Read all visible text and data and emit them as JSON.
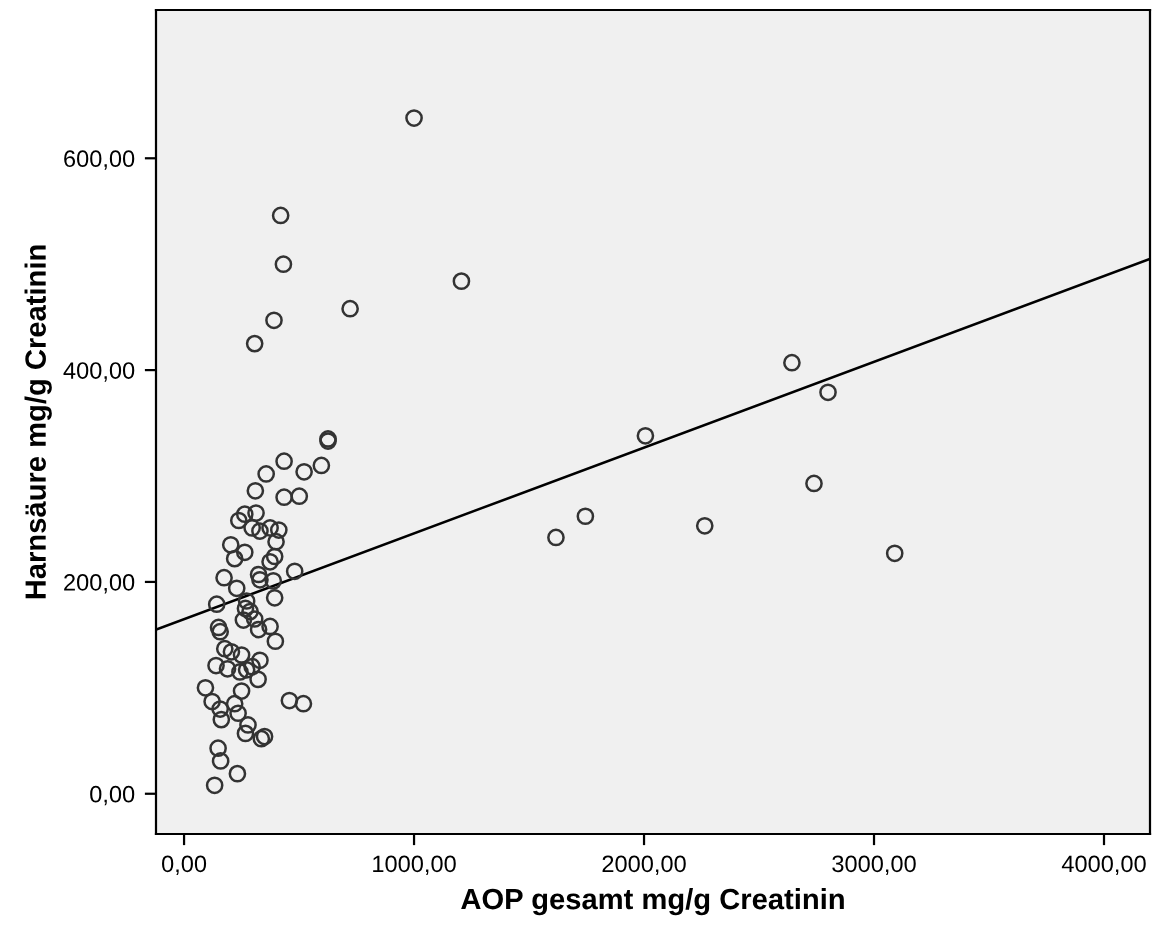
{
  "chart_data": {
    "type": "scatter",
    "xlabel": "AOP gesamt mg/g Creatinin",
    "ylabel": "Harnsäure mg/g Creatinin",
    "xlim": [
      -122,
      4200
    ],
    "ylim": [
      -38,
      740
    ],
    "xticks": [
      {
        "value": 0,
        "label": "0,00"
      },
      {
        "value": 1000,
        "label": "1000,00"
      },
      {
        "value": 2000,
        "label": "2000,00"
      },
      {
        "value": 3000,
        "label": "3000,00"
      },
      {
        "value": 4000,
        "label": "4000,00"
      }
    ],
    "yticks": [
      {
        "value": 0,
        "label": "0,00"
      },
      {
        "value": 200,
        "label": "200,00"
      },
      {
        "value": 400,
        "label": "400,00"
      },
      {
        "value": 600,
        "label": "600,00"
      }
    ],
    "grid": false,
    "marker": "circle",
    "series": [
      {
        "color": "#333333",
        "x": [
          1000,
          420,
          432,
          391,
          307,
          722,
          1206,
          2643,
          2800,
          2006,
          2739,
          1745,
          1617,
          2264,
          3090,
          626,
          626,
          435,
          357,
          522,
          597,
          310,
          435,
          501,
          238,
          264,
          313,
          296,
          330,
          374,
          412,
          400,
          203,
          264,
          220,
          374,
          394,
          174,
          324,
          330,
          388,
          481,
          229,
          394,
          142,
          272,
          267,
          287,
          258,
          307,
          324,
          374,
          150,
          157,
          397,
          177,
          206,
          250,
          330,
          139,
          189,
          243,
          272,
          296,
          322,
          93,
          250,
          122,
          157,
          162,
          220,
          235,
          458,
          519,
          278,
          267,
          336,
          350,
          148,
          159,
          232,
          133
        ],
        "values": [
          638,
          546,
          500,
          447,
          425,
          458,
          484,
          407,
          379,
          338,
          293,
          262,
          242,
          253,
          227,
          335,
          333,
          314,
          302,
          304,
          310,
          286,
          280,
          281,
          258,
          264,
          265,
          251,
          248,
          251,
          249,
          238,
          235,
          228,
          222,
          219,
          224,
          204,
          207,
          202,
          201,
          210,
          194,
          185,
          179,
          182,
          175,
          172,
          164,
          165,
          155,
          158,
          157,
          153,
          144,
          137,
          134,
          131,
          126,
          121,
          118,
          115,
          117,
          120,
          108,
          100,
          97,
          87,
          80,
          70,
          85,
          76,
          88,
          85,
          65,
          57,
          52,
          54,
          43,
          31,
          19,
          8
        ]
      },
      {
        "type": "line",
        "color": "#000000",
        "marker": "none",
        "x": [
          -122,
          4200
        ],
        "values": [
          155,
          505
        ]
      }
    ]
  }
}
